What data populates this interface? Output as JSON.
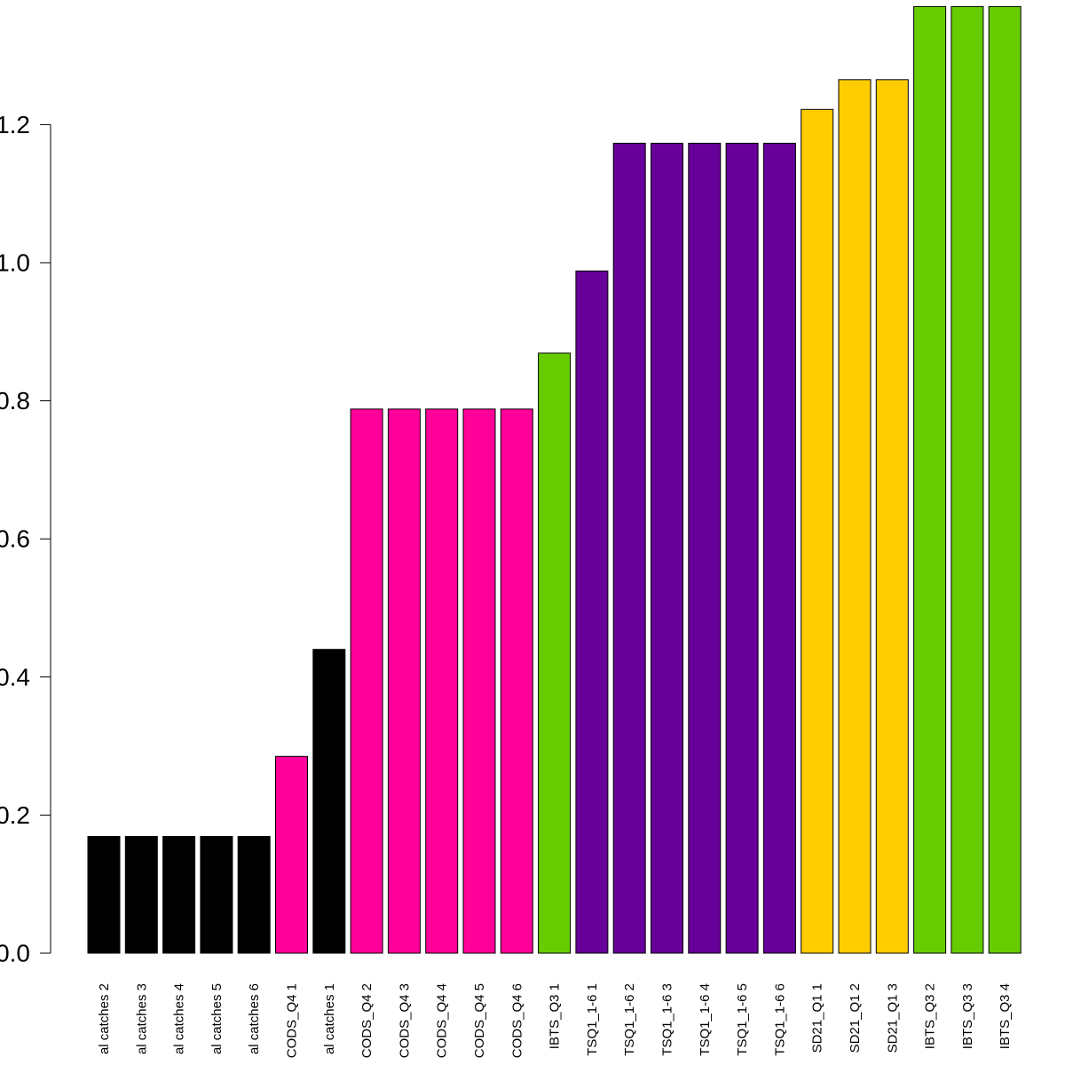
{
  "chart_data": {
    "type": "bar",
    "title": "",
    "xlabel": "",
    "ylabel": "",
    "ylim": [
      0,
      1.38
    ],
    "y_ticks": [
      0.0,
      0.2,
      0.4,
      0.6,
      0.8,
      1.0,
      1.2
    ],
    "y_tick_labels": [
      "0.0",
      "0.2",
      "0.4",
      "0.6",
      "0.8",
      "1.0",
      "1.2"
    ],
    "grid": false,
    "legend": "none",
    "categories": [
      "al catches 2",
      "al catches 3",
      "al catches 4",
      "al catches 5",
      "al catches 6",
      "CODS_Q4 1",
      "al catches 1",
      "CODS_Q4 2",
      "CODS_Q4 3",
      "CODS_Q4 4",
      "CODS_Q4 5",
      "CODS_Q4 6",
      "IBTS_Q3 1",
      "TSQ1_1-6 1",
      "TSQ1_1-6 2",
      "TSQ1_1-6 3",
      "TSQ1_1-6 4",
      "TSQ1_1-6 5",
      "TSQ1_1-6 6",
      "SD21_Q1 1",
      "SD21_Q1 2",
      "SD21_Q1 3",
      "IBTS_Q3 2",
      "IBTS_Q3 3",
      "IBTS_Q3 4"
    ],
    "values": [
      0.169,
      0.169,
      0.169,
      0.169,
      0.169,
      0.285,
      0.44,
      0.788,
      0.788,
      0.788,
      0.788,
      0.788,
      0.869,
      0.988,
      1.173,
      1.173,
      1.173,
      1.173,
      1.173,
      1.222,
      1.265,
      1.265,
      1.371,
      1.371,
      1.371
    ],
    "bar_colors": [
      "#000000",
      "#000000",
      "#000000",
      "#000000",
      "#000000",
      "#ff0099",
      "#000000",
      "#ff0099",
      "#ff0099",
      "#ff0099",
      "#ff0099",
      "#ff0099",
      "#66cc00",
      "#660099",
      "#660099",
      "#660099",
      "#660099",
      "#660099",
      "#660099",
      "#ffcc00",
      "#ffcc00",
      "#ffcc00",
      "#66cc00",
      "#66cc00",
      "#66cc00"
    ]
  }
}
